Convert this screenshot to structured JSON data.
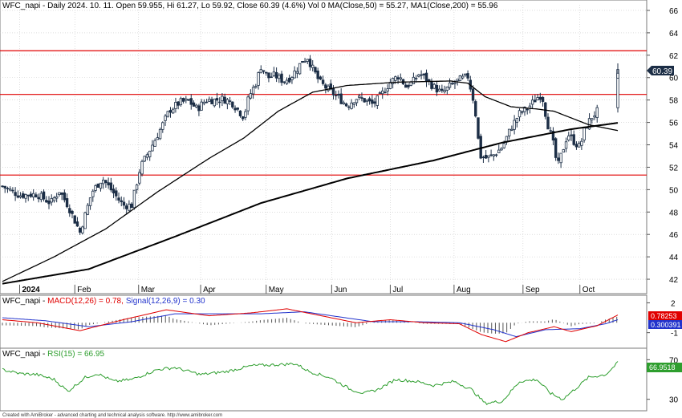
{
  "header_main": "WFC_napi - Daily 2024. 10. 11. Open 59.955, Hi 61.27, Lo 59.92, Close 60.39 (4.6%) Vol 0 MA(Close,50) = 55.27, MA1(Close,200) = 55.96",
  "header_macd": {
    "prefix": "WFC_napi - ",
    "macd": "MACD(12,26) = 0.78,",
    "signal": "Signal(12,26,9) = 0.30"
  },
  "header_rsi": {
    "prefix": "WFC_napi - ",
    "rsi": "RSI(15) = 66.95"
  },
  "footer": "Created with AmiBroker - advanced charting and technical analysis software. http://www.amibroker.com",
  "price_badge": "60.39",
  "macd_badges": [
    "0.78253",
    "0.300391"
  ],
  "rsi_badge": "66.9518",
  "colors": {
    "candle": "#1c2e46",
    "ma": "#000000",
    "level": "#e00000",
    "macd": "#e00000",
    "signal": "#2233cc",
    "hist": "#555555",
    "rsi": "#2e9e2e",
    "grid": "#c8c8c8"
  },
  "chart_data": [
    {
      "type": "candlestick",
      "title": "WFC_napi - Daily",
      "x_labels": [
        "2024",
        "Feb",
        "Mar",
        "Apr",
        "May",
        "Jun",
        "Jul",
        "Aug",
        "Sep",
        "Oct"
      ],
      "ylim": [
        41,
        66.5
      ],
      "y_ticks": [
        42,
        44,
        46,
        48,
        50,
        52,
        54,
        56,
        58,
        60,
        62,
        64,
        66
      ],
      "horizontal_levels": [
        62.4,
        58.5,
        51.3
      ],
      "ohlc_anchor": [
        [
          0,
          50.3
        ],
        [
          10,
          49.5
        ],
        [
          20,
          49.6
        ],
        [
          28,
          48.8
        ],
        [
          33,
          49.9
        ],
        [
          38,
          48.6
        ],
        [
          45,
          46.2
        ],
        [
          52,
          49.8
        ],
        [
          58,
          51.0
        ],
        [
          64,
          49.8
        ],
        [
          70,
          48.6
        ],
        [
          75,
          48.6
        ],
        [
          80,
          52.0
        ],
        [
          86,
          53.7
        ],
        [
          92,
          55.5
        ],
        [
          97,
          57.1
        ],
        [
          103,
          57.8
        ],
        [
          108,
          57.9
        ],
        [
          113,
          57.2
        ],
        [
          118,
          58.0
        ],
        [
          123,
          58.0
        ],
        [
          128,
          58.1
        ],
        [
          133,
          57.8
        ],
        [
          140,
          56.5
        ],
        [
          143,
          58.3
        ],
        [
          147,
          59.5
        ],
        [
          150,
          61.0
        ],
        [
          154,
          60.0
        ],
        [
          158,
          60.2
        ],
        [
          163,
          59.7
        ],
        [
          167,
          60.0
        ],
        [
          171,
          60.8
        ],
        [
          174,
          61.5
        ],
        [
          177,
          61.8
        ],
        [
          180,
          60.8
        ],
        [
          184,
          59.6
        ],
        [
          190,
          58.8
        ],
        [
          195,
          58.2
        ],
        [
          200,
          57.5
        ],
        [
          205,
          58.2
        ],
        [
          210,
          58.0
        ],
        [
          215,
          57.6
        ],
        [
          220,
          58.5
        ],
        [
          225,
          59.6
        ],
        [
          230,
          60.2
        ],
        [
          234,
          59.2
        ],
        [
          238,
          59.6
        ],
        [
          242,
          60.4
        ],
        [
          246,
          59.8
        ],
        [
          250,
          59.2
        ],
        [
          255,
          58.6
        ],
        [
          260,
          59.3
        ],
        [
          265,
          59.8
        ],
        [
          270,
          60.1
        ],
        [
          274,
          57.5
        ],
        [
          277,
          53.0
        ],
        [
          281,
          52.8
        ],
        [
          285,
          53.1
        ],
        [
          290,
          53.8
        ],
        [
          295,
          55.5
        ],
        [
          300,
          56.8
        ],
        [
          305,
          57.3
        ],
        [
          310,
          58.2
        ],
        [
          313,
          58.5
        ],
        [
          316,
          56.0
        ],
        [
          319,
          54.5
        ],
        [
          322,
          52.0
        ],
        [
          325,
          53.5
        ],
        [
          328,
          55.0
        ],
        [
          332,
          54.2
        ],
        [
          335,
          53.8
        ],
        [
          338,
          55.5
        ],
        [
          342,
          56.5
        ],
        [
          345,
          57.0
        ],
        [
          348,
          57.5
        ],
        [
          352,
          58.0
        ],
        [
          355,
          57.8
        ],
        [
          357,
          60.39
        ]
      ],
      "ma50": [
        [
          0,
          41.8
        ],
        [
          30,
          44.0
        ],
        [
          60,
          46.5
        ],
        [
          90,
          49.8
        ],
        [
          120,
          52.8
        ],
        [
          140,
          54.6
        ],
        [
          160,
          57.0
        ],
        [
          180,
          58.7
        ],
        [
          200,
          59.3
        ],
        [
          230,
          59.6
        ],
        [
          260,
          59.7
        ],
        [
          270,
          59.5
        ],
        [
          280,
          58.3
        ],
        [
          295,
          57.4
        ],
        [
          310,
          57.2
        ],
        [
          320,
          57.0
        ],
        [
          340,
          55.8
        ],
        [
          357,
          55.27
        ]
      ],
      "ma200": [
        [
          0,
          41.6
        ],
        [
          50,
          42.9
        ],
        [
          100,
          45.8
        ],
        [
          150,
          48.8
        ],
        [
          200,
          51.0
        ],
        [
          250,
          52.6
        ],
        [
          290,
          54.2
        ],
        [
          330,
          55.4
        ],
        [
          357,
          55.96
        ]
      ]
    },
    {
      "type": "line",
      "title": "MACD(12,26)",
      "y_ticks": [
        2,
        -1
      ],
      "ylim": [
        -2.4,
        2.6
      ],
      "series": [
        {
          "name": "MACD(12,26)",
          "points": [
            [
              0,
              0.3
            ],
            [
              20,
              0.0
            ],
            [
              45,
              -0.8
            ],
            [
              70,
              0.3
            ],
            [
              95,
              1.3
            ],
            [
              120,
              0.7
            ],
            [
              145,
              1.0
            ],
            [
              165,
              1.4
            ],
            [
              185,
              0.7
            ],
            [
              205,
              0.0
            ],
            [
              225,
              0.3
            ],
            [
              245,
              0.0
            ],
            [
              265,
              -0.1
            ],
            [
              278,
              -1.2
            ],
            [
              292,
              -1.9
            ],
            [
              305,
              -1.0
            ],
            [
              320,
              -0.4
            ],
            [
              330,
              -0.9
            ],
            [
              345,
              -0.3
            ],
            [
              357,
              0.78
            ]
          ]
        },
        {
          "name": "Signal(12,26,9)",
          "points": [
            [
              0,
              0.5
            ],
            [
              25,
              0.2
            ],
            [
              50,
              -0.4
            ],
            [
              75,
              0.1
            ],
            [
              100,
              0.9
            ],
            [
              125,
              0.9
            ],
            [
              150,
              0.9
            ],
            [
              175,
              1.1
            ],
            [
              195,
              0.6
            ],
            [
              215,
              0.1
            ],
            [
              240,
              0.1
            ],
            [
              265,
              0.0
            ],
            [
              285,
              -0.7
            ],
            [
              298,
              -1.4
            ],
            [
              315,
              -0.7
            ],
            [
              335,
              -0.6
            ],
            [
              350,
              -0.1
            ],
            [
              357,
              0.3
            ]
          ]
        }
      ]
    },
    {
      "type": "line",
      "title": "RSI(15)",
      "y_ticks": [
        70,
        30
      ],
      "ylim": [
        20,
        80
      ],
      "series": [
        {
          "name": "RSI(15)",
          "points": [
            [
              0,
              60
            ],
            [
              10,
              56
            ],
            [
              20,
              55
            ],
            [
              30,
              50
            ],
            [
              38,
              38
            ],
            [
              48,
              52
            ],
            [
              55,
              56
            ],
            [
              65,
              48
            ],
            [
              75,
              50
            ],
            [
              90,
              60
            ],
            [
              100,
              62
            ],
            [
              115,
              55
            ],
            [
              130,
              58
            ],
            [
              145,
              64
            ],
            [
              160,
              65
            ],
            [
              170,
              66
            ],
            [
              178,
              58
            ],
            [
              190,
              52
            ],
            [
              202,
              40
            ],
            [
              210,
              36
            ],
            [
              218,
              40
            ],
            [
              228,
              50
            ],
            [
              240,
              48
            ],
            [
              250,
              44
            ],
            [
              262,
              48
            ],
            [
              272,
              40
            ],
            [
              280,
              26
            ],
            [
              290,
              28
            ],
            [
              300,
              48
            ],
            [
              310,
              50
            ],
            [
              318,
              36
            ],
            [
              325,
              30
            ],
            [
              332,
              40
            ],
            [
              340,
              52
            ],
            [
              350,
              55
            ],
            [
              357,
              66.95
            ]
          ]
        }
      ]
    }
  ]
}
